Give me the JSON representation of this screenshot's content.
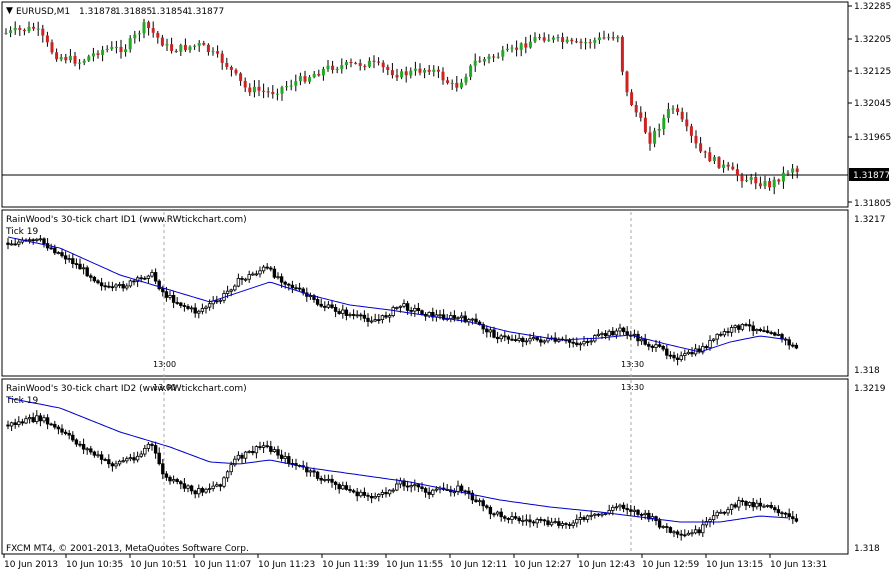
{
  "main_chart": {
    "symbol_label": "EURUSD,M1",
    "ohlc": [
      "1.31878",
      "1.31885",
      "1.31854",
      "1.31877"
    ],
    "price_ticks": [
      "1.32285",
      "1.32205",
      "1.32125",
      "1.32045",
      "1.31965",
      "1.31805"
    ],
    "current_price": "1.31877",
    "colors": {
      "bull": "#22aa22",
      "bear": "#cc2222",
      "wick": "#000000",
      "price_line": "#000000"
    }
  },
  "sub_chart_1": {
    "title": "RainWood's 30-tick chart  ID1  (www.RWtickchart.com)",
    "tick_label": "Tick 19",
    "price_top": "1.3217",
    "price_bottom": "1.318",
    "separators": [
      "13:00",
      "13:30"
    ],
    "colors": {
      "candle": "#000000",
      "ma": "#0000cc"
    }
  },
  "sub_chart_2": {
    "title": "RainWood's 30-tick chart  ID2  (www.RWtickchart.com)",
    "tick_label": "Tick 19",
    "price_top": "1.3219",
    "price_bottom": "1.318",
    "colors": {
      "candle": "#000000",
      "ma": "#0000cc"
    }
  },
  "footer": {
    "copyright": "FXCM MT4, © 2001-2013, MetaQuotes Software Corp."
  },
  "time_axis": {
    "labels": [
      "10 Jun 2013",
      "10 Jun 10:35",
      "10 Jun 10:51",
      "10 Jun 11:07",
      "10 Jun 11:23",
      "10 Jun 11:39",
      "10 Jun 11:55",
      "10 Jun 12:11",
      "10 Jun 12:27",
      "10 Jun 12:43",
      "10 Jun 12:59",
      "10 Jun 13:15",
      "10 Jun 13:31"
    ]
  }
}
